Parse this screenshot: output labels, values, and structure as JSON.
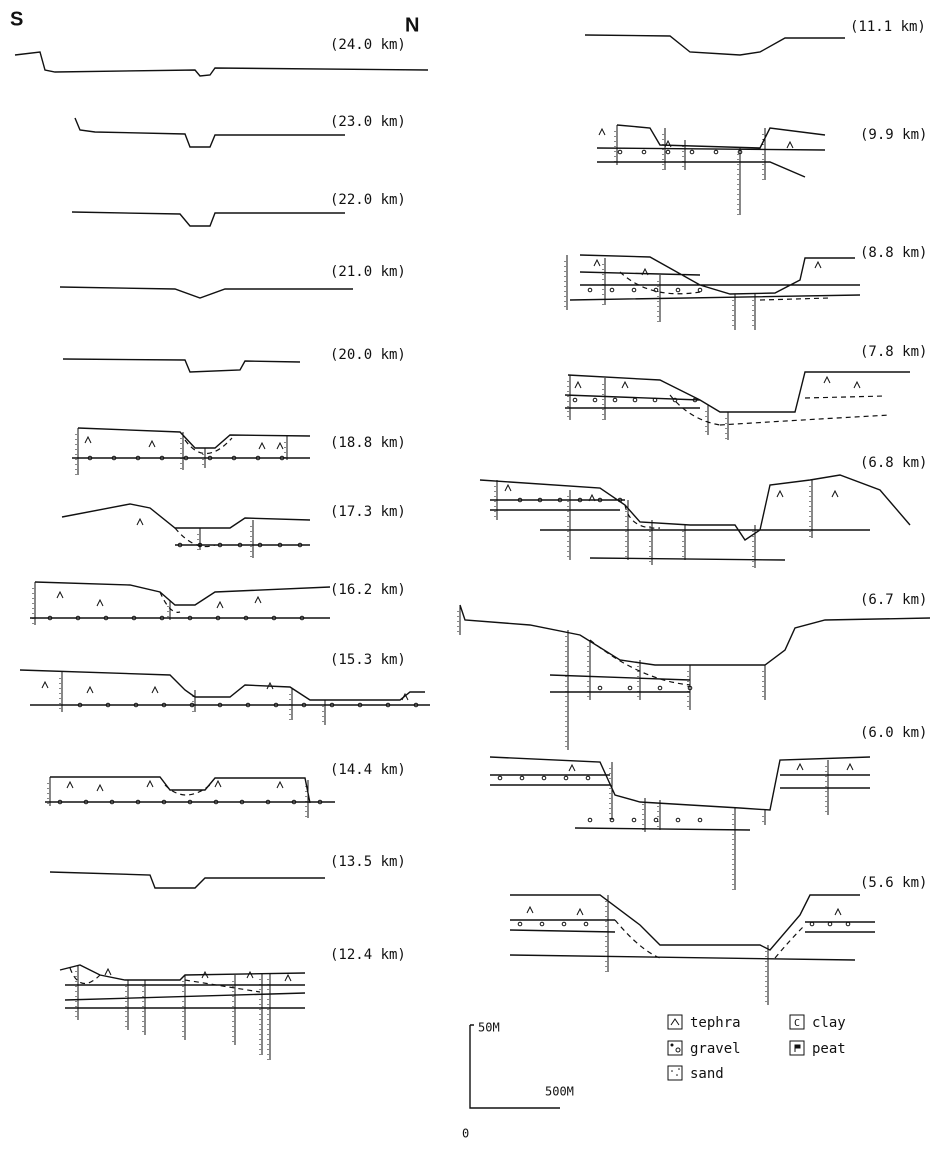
{
  "header": {
    "south": "S",
    "north": "N"
  },
  "sections": [
    {
      "label": "(24.0 km)"
    },
    {
      "label": "(23.0 km)"
    },
    {
      "label": "(22.0 km)"
    },
    {
      "label": "(21.0 km)"
    },
    {
      "label": "(20.0 km)"
    },
    {
      "label": "(18.8 km)"
    },
    {
      "label": "(17.3 km)"
    },
    {
      "label": "(16.2 km)"
    },
    {
      "label": "(15.3 km)"
    },
    {
      "label": "(14.4 km)"
    },
    {
      "label": "(13.5 km)"
    },
    {
      "label": "(12.4 km)"
    },
    {
      "label": "(11.1 km)"
    },
    {
      "label": "(9.9 km)"
    },
    {
      "label": "(8.8 km)"
    },
    {
      "label": "(7.8 km)"
    },
    {
      "label": "(6.8 km)"
    },
    {
      "label": "(6.7 km)"
    },
    {
      "label": "(6.0 km)"
    },
    {
      "label": "(5.6 km)"
    }
  ],
  "scale": {
    "vertical": "50M",
    "horizontal": "500M",
    "origin": "0"
  },
  "legend": [
    {
      "label": "tephra"
    },
    {
      "label": "gravel"
    },
    {
      "label": "sand"
    },
    {
      "symbol": "C",
      "label": "clay"
    },
    {
      "label": "peat"
    }
  ]
}
